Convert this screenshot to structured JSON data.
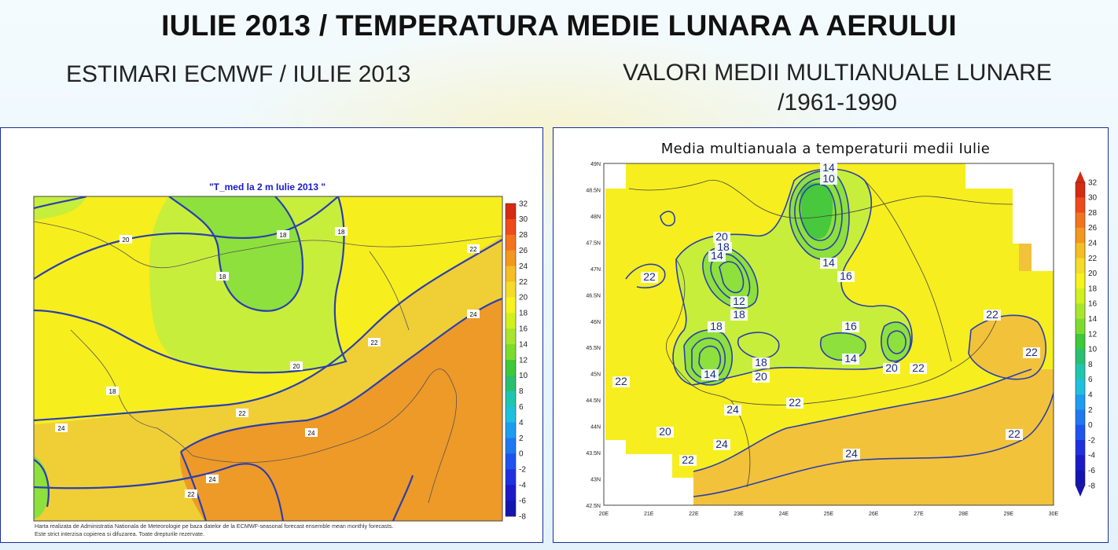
{
  "header": {
    "title": "IULIE 2013 / TEMPERATURA MEDIE LUNARA A AERULUI",
    "left_subtitle": "ESTIMARI ECMWF / IULIE 2013",
    "right_subtitle_line1": "VALORI MEDII MULTIANUALE LUNARE",
    "right_subtitle_line2": "/1961-1990"
  },
  "left_map": {
    "title": "\"T_med la 2 m Iulie 2013 \"",
    "colorbar_ticks": [
      "32",
      "30",
      "28",
      "26",
      "24",
      "22",
      "20",
      "18",
      "16",
      "14",
      "12",
      "10",
      "8",
      "6",
      "4",
      "2",
      "0",
      "-2",
      "-4",
      "-6",
      "-8"
    ],
    "contour_labels": [
      "20",
      "18",
      "18",
      "18",
      "22",
      "24",
      "22",
      "20",
      "18",
      "22",
      "24",
      "24",
      "22",
      "24"
    ],
    "footer_line1": "Harta realizata de Administratia Nationala de Meteorologie pe baza datelor de la ECMWF-seasonal forecast ensemble mean monthly forecasts.",
    "footer_line2": "Este strict interzisa copierea si difuzarea. Toate drepturile rezervate."
  },
  "right_map": {
    "title": "Media multianuala a temperaturii medii Iulie",
    "lat_ticks": [
      "49N",
      "48.5N",
      "48N",
      "47.5N",
      "47N",
      "46.5N",
      "46N",
      "45.5N",
      "45N",
      "44.5N",
      "44N",
      "43.5N",
      "43N",
      "42.5N"
    ],
    "lon_ticks": [
      "20E",
      "21E",
      "22E",
      "23E",
      "24E",
      "25E",
      "26E",
      "27E",
      "28E",
      "29E",
      "30E"
    ],
    "colorbar_ticks": [
      "32",
      "30",
      "28",
      "26",
      "24",
      "22",
      "20",
      "18",
      "16",
      "14",
      "12",
      "10",
      "8",
      "6",
      "4",
      "2",
      "0",
      "-2",
      "-4",
      "-6",
      "-8"
    ],
    "contour_labels": [
      "22",
      "20",
      "18",
      "14",
      "12",
      "18",
      "14",
      "10",
      "14",
      "16",
      "22",
      "22",
      "22",
      "18",
      "14",
      "18",
      "20",
      "16",
      "14",
      "20",
      "22",
      "24",
      "22",
      "20",
      "22",
      "24",
      "24",
      "22"
    ]
  },
  "colors": {
    "contour": "#2a3fb0",
    "yellow": "#f4f21e",
    "light_green": "#c6ee3c",
    "green": "#8ee03c",
    "orange": "#f2c23a",
    "dark_orange": "#ee9a28",
    "frame": "#1a2f9a"
  }
}
